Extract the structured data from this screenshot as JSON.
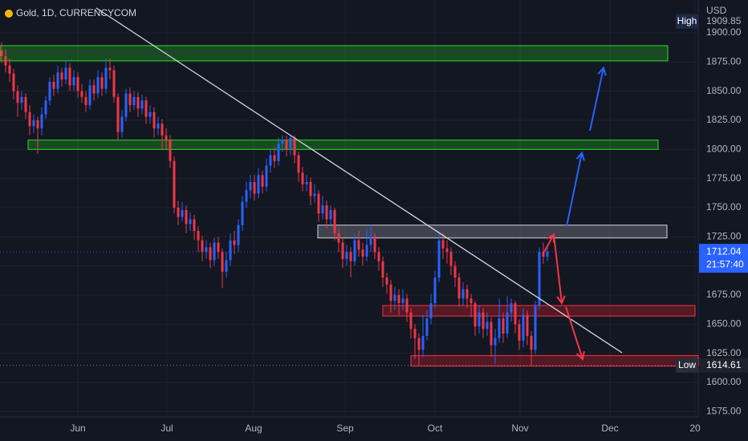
{
  "chart_data": {
    "type": "candlestick",
    "title": "Gold, 1D, CURRENCYCOM",
    "currency": "USD",
    "up_color": "#2962ff",
    "down_color": "#f23645",
    "candles": [
      [
        1885,
        1892,
        1874,
        1880
      ],
      [
        1880,
        1886,
        1866,
        1872
      ],
      [
        1872,
        1878,
        1858,
        1865
      ],
      [
        1865,
        1869,
        1843,
        1850
      ],
      [
        1850,
        1855,
        1828,
        1840
      ],
      [
        1840,
        1850,
        1834,
        1845
      ],
      [
        1845,
        1848,
        1826,
        1832
      ],
      [
        1832,
        1838,
        1812,
        1820
      ],
      [
        1820,
        1830,
        1814,
        1825
      ],
      [
        1825,
        1828,
        1796,
        1818
      ],
      [
        1818,
        1836,
        1812,
        1830
      ],
      [
        1830,
        1846,
        1826,
        1842
      ],
      [
        1842,
        1862,
        1838,
        1858
      ],
      [
        1858,
        1864,
        1846,
        1852
      ],
      [
        1852,
        1872,
        1848,
        1866
      ],
      [
        1866,
        1870,
        1854,
        1860
      ],
      [
        1860,
        1876,
        1856,
        1870
      ],
      [
        1870,
        1874,
        1850,
        1855
      ],
      [
        1855,
        1868,
        1850,
        1862
      ],
      [
        1862,
        1866,
        1844,
        1850
      ],
      [
        1850,
        1856,
        1840,
        1845
      ],
      [
        1845,
        1850,
        1832,
        1838
      ],
      [
        1838,
        1860,
        1834,
        1855
      ],
      [
        1855,
        1860,
        1842,
        1848
      ],
      [
        1848,
        1868,
        1844,
        1862
      ],
      [
        1862,
        1866,
        1846,
        1852
      ],
      [
        1852,
        1878,
        1848,
        1870
      ],
      [
        1870,
        1878,
        1860,
        1868
      ],
      [
        1868,
        1872,
        1840,
        1845
      ],
      [
        1845,
        1848,
        1808,
        1815
      ],
      [
        1815,
        1834,
        1810,
        1828
      ],
      [
        1828,
        1852,
        1824,
        1848
      ],
      [
        1848,
        1853,
        1832,
        1838
      ],
      [
        1838,
        1850,
        1834,
        1845
      ],
      [
        1845,
        1849,
        1828,
        1835
      ],
      [
        1835,
        1847,
        1830,
        1842
      ],
      [
        1842,
        1845,
        1822,
        1828
      ],
      [
        1828,
        1838,
        1822,
        1832
      ],
      [
        1832,
        1836,
        1810,
        1818
      ],
      [
        1818,
        1828,
        1812,
        1822
      ],
      [
        1822,
        1826,
        1800,
        1812
      ],
      [
        1812,
        1818,
        1800,
        1808
      ],
      [
        1808,
        1812,
        1784,
        1790
      ],
      [
        1790,
        1794,
        1745,
        1750
      ],
      [
        1750,
        1756,
        1735,
        1742
      ],
      [
        1742,
        1755,
        1738,
        1748
      ],
      [
        1748,
        1752,
        1728,
        1736
      ],
      [
        1736,
        1746,
        1730,
        1740
      ],
      [
        1740,
        1744,
        1722,
        1730
      ],
      [
        1730,
        1734,
        1712,
        1722
      ],
      [
        1722,
        1726,
        1704,
        1712
      ],
      [
        1712,
        1722,
        1706,
        1716
      ],
      [
        1716,
        1720,
        1698,
        1705
      ],
      [
        1705,
        1724,
        1700,
        1720
      ],
      [
        1720,
        1725,
        1706,
        1712
      ],
      [
        1712,
        1715,
        1681,
        1695
      ],
      [
        1695,
        1712,
        1690,
        1705
      ],
      [
        1705,
        1728,
        1700,
        1722
      ],
      [
        1722,
        1730,
        1710,
        1718
      ],
      [
        1718,
        1740,
        1712,
        1735
      ],
      [
        1735,
        1760,
        1730,
        1755
      ],
      [
        1755,
        1772,
        1750,
        1765
      ],
      [
        1765,
        1778,
        1758,
        1772
      ],
      [
        1772,
        1778,
        1756,
        1762
      ],
      [
        1762,
        1784,
        1758,
        1778
      ],
      [
        1778,
        1782,
        1762,
        1768
      ],
      [
        1768,
        1792,
        1764,
        1786
      ],
      [
        1786,
        1800,
        1780,
        1795
      ],
      [
        1795,
        1802,
        1784,
        1790
      ],
      [
        1790,
        1810,
        1786,
        1805
      ],
      [
        1805,
        1812,
        1798,
        1808
      ],
      [
        1808,
        1812,
        1794,
        1800
      ],
      [
        1800,
        1812,
        1795,
        1810
      ],
      [
        1810,
        1812,
        1788,
        1795
      ],
      [
        1795,
        1798,
        1772,
        1780
      ],
      [
        1780,
        1785,
        1764,
        1770
      ],
      [
        1770,
        1778,
        1764,
        1772
      ],
      [
        1772,
        1776,
        1752,
        1760
      ],
      [
        1760,
        1770,
        1754,
        1762
      ],
      [
        1762,
        1765,
        1738,
        1745
      ],
      [
        1745,
        1760,
        1740,
        1752
      ],
      [
        1752,
        1756,
        1732,
        1740
      ],
      [
        1740,
        1752,
        1735,
        1748
      ],
      [
        1748,
        1750,
        1722,
        1728
      ],
      [
        1728,
        1732,
        1712,
        1720
      ],
      [
        1720,
        1724,
        1698,
        1706
      ],
      [
        1706,
        1718,
        1700,
        1712
      ],
      [
        1712,
        1716,
        1690,
        1704
      ],
      [
        1704,
        1728,
        1700,
        1722
      ],
      [
        1722,
        1730,
        1708,
        1714
      ],
      [
        1714,
        1720,
        1700,
        1708
      ],
      [
        1708,
        1732,
        1704,
        1718
      ],
      [
        1718,
        1735,
        1712,
        1725
      ],
      [
        1725,
        1728,
        1706,
        1712
      ],
      [
        1712,
        1716,
        1696,
        1704
      ],
      [
        1704,
        1708,
        1682,
        1690
      ],
      [
        1690,
        1694,
        1676,
        1684
      ],
      [
        1684,
        1688,
        1660,
        1670
      ],
      [
        1670,
        1682,
        1662,
        1675
      ],
      [
        1675,
        1680,
        1658,
        1668
      ],
      [
        1668,
        1680,
        1662,
        1672
      ],
      [
        1672,
        1676,
        1652,
        1660
      ],
      [
        1660,
        1664,
        1638,
        1646
      ],
      [
        1646,
        1650,
        1620,
        1638
      ],
      [
        1638,
        1642,
        1615,
        1628
      ],
      [
        1628,
        1658,
        1622,
        1640
      ],
      [
        1640,
        1662,
        1636,
        1655
      ],
      [
        1655,
        1676,
        1650,
        1668
      ],
      [
        1668,
        1696,
        1664,
        1690
      ],
      [
        1690,
        1730,
        1686,
        1722
      ],
      [
        1722,
        1728,
        1706,
        1715
      ],
      [
        1715,
        1722,
        1702,
        1712
      ],
      [
        1712,
        1716,
        1692,
        1700
      ],
      [
        1700,
        1704,
        1682,
        1690
      ],
      [
        1690,
        1694,
        1665,
        1672
      ],
      [
        1672,
        1686,
        1666,
        1680
      ],
      [
        1680,
        1684,
        1664,
        1672
      ],
      [
        1672,
        1676,
        1656,
        1668
      ],
      [
        1668,
        1670,
        1640,
        1648
      ],
      [
        1648,
        1666,
        1642,
        1660
      ],
      [
        1660,
        1664,
        1638,
        1646
      ],
      [
        1646,
        1660,
        1640,
        1652
      ],
      [
        1652,
        1656,
        1622,
        1632
      ],
      [
        1632,
        1646,
        1616,
        1638
      ],
      [
        1638,
        1672,
        1634,
        1655
      ],
      [
        1655,
        1660,
        1634,
        1642
      ],
      [
        1642,
        1674,
        1638,
        1660
      ],
      [
        1660,
        1672,
        1652,
        1668
      ],
      [
        1668,
        1670,
        1642,
        1650
      ],
      [
        1650,
        1654,
        1628,
        1636
      ],
      [
        1636,
        1664,
        1630,
        1658
      ],
      [
        1658,
        1662,
        1632,
        1640
      ],
      [
        1640,
        1644,
        1614.61,
        1628
      ],
      [
        1628,
        1670,
        1624,
        1666
      ],
      [
        1666,
        1716,
        1662,
        1712
      ],
      [
        1712,
        1720,
        1702,
        1708
      ],
      [
        1708,
        1716,
        1704,
        1712.04
      ]
    ],
    "xlim": [
      -0.4,
      173.6
    ],
    "ylim": [
      1570.4,
      1928.2
    ],
    "xticks": [
      {
        "value": 19,
        "label": "Jun"
      },
      {
        "value": 41.2,
        "label": "Jul"
      },
      {
        "value": 62.8,
        "label": "Aug"
      },
      {
        "value": 85.6,
        "label": "Sep"
      },
      {
        "value": 108,
        "label": "Oct"
      },
      {
        "value": 129.2,
        "label": "Nov"
      },
      {
        "value": 151.6,
        "label": "Dec"
      },
      {
        "value": 172.8,
        "label": "20"
      }
    ],
    "yticks": [
      {
        "value": 1575,
        "label": "1575.00"
      },
      {
        "value": 1600,
        "label": "1600.00"
      },
      {
        "value": 1625,
        "label": "1625.00"
      },
      {
        "value": 1650,
        "label": "1650.00"
      },
      {
        "value": 1675,
        "label": "1675.00"
      },
      {
        "value": 1700,
        "label": "1700.00"
      },
      {
        "value": 1725,
        "label": "1725.00"
      },
      {
        "value": 1750,
        "label": "1750.00"
      },
      {
        "value": 1775,
        "label": "1775.00"
      },
      {
        "value": 1800,
        "label": "1800.00"
      },
      {
        "value": 1825,
        "label": "1825.00"
      },
      {
        "value": 1850,
        "label": "1850.00"
      },
      {
        "value": 1875,
        "label": "1875.00"
      },
      {
        "value": 1900,
        "label": "1900.00"
      }
    ],
    "high": {
      "label": "High",
      "value": 1909.85
    },
    "low": {
      "label": "Low",
      "value": 1614.61
    },
    "last_price": {
      "value": 1712.04,
      "countdown": "21:57:40"
    },
    "zones": [
      {
        "color": "#22e022",
        "fill": "rgba(40,170,40,0.35)",
        "price": [
          1876,
          1889
        ],
        "index": [
          -0.4,
          166
        ]
      },
      {
        "color": "#22e022",
        "fill": "rgba(40,170,40,0.35)",
        "price": [
          1800,
          1808
        ],
        "index": [
          6.6,
          163.6
        ]
      },
      {
        "color": "#d1d4dc",
        "fill": "rgba(120,123,134,0.45)",
        "price": [
          1724,
          1735
        ],
        "index": [
          78.8,
          165.8
        ]
      },
      {
        "color": "#f23645",
        "fill": "rgba(180,30,40,0.4)",
        "price": [
          1657,
          1666
        ],
        "index": [
          95,
          172.8
        ]
      },
      {
        "color": "#f23645",
        "fill": "rgba(180,30,40,0.4)",
        "price": [
          1614,
          1623
        ],
        "index": [
          102,
          173.6
        ]
      }
    ],
    "trendline": {
      "color": "#d1d4dc",
      "points": [
        [
          23.6,
          1921.3
        ],
        [
          154.6,
          1625.5
        ]
      ]
    },
    "arrows": [
      {
        "color": "#2962ff",
        "points": [
          [
            140.8,
            1734
          ],
          [
            144.6,
            1797
          ]
        ]
      },
      {
        "color": "#2962ff",
        "points": [
          [
            146.6,
            1816
          ],
          [
            150,
            1870
          ]
        ]
      },
      {
        "color": "#f23645",
        "points": [
          [
            135.2,
            1712
          ],
          [
            137.6,
            1727
          ]
        ]
      },
      {
        "color": "#f23645",
        "points": [
          [
            137.6,
            1727
          ],
          [
            139.6,
            1668
          ]
        ]
      },
      {
        "color": "#f23645",
        "points": [
          [
            140.6,
            1665
          ],
          [
            144.8,
            1620
          ]
        ]
      }
    ]
  }
}
